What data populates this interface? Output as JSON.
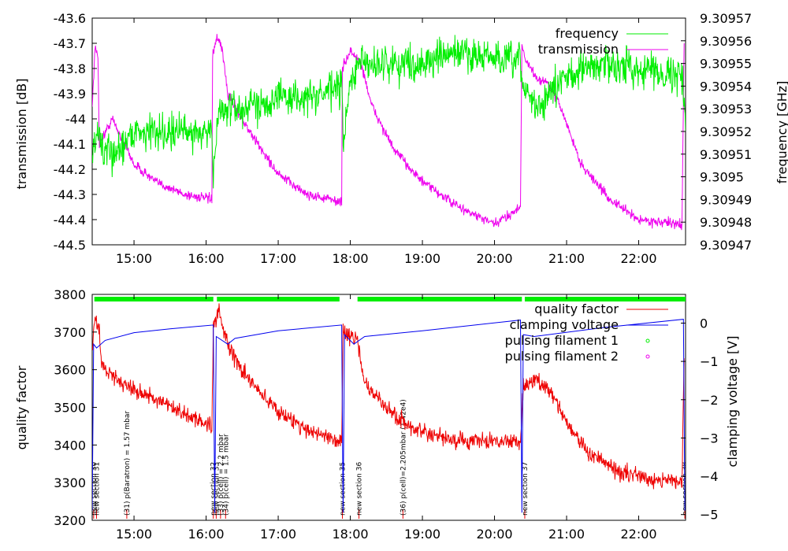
{
  "chart_data": [
    {
      "type": "line",
      "title": "",
      "xlabel": "",
      "ylabel": "transmission [dB]",
      "y2label": "frequency [GHz]",
      "x_ticks": [
        "15:00",
        "16:00",
        "17:00",
        "18:00",
        "19:00",
        "20:00",
        "21:00",
        "22:00"
      ],
      "xlim_hours": [
        14.42,
        22.65
      ],
      "ylim": [
        -44.5,
        -43.6
      ],
      "y_ticks": [
        "-43.6",
        "-43.7",
        "-43.8",
        "-43.9",
        "-44",
        "-44.1",
        "-44.2",
        "-44.3",
        "-44.4",
        "-44.5"
      ],
      "y2lim": [
        9.30947,
        9.30957
      ],
      "y2_ticks": [
        "9.30957",
        "9.30956",
        "9.30955",
        "9.30954",
        "9.30953",
        "9.30952",
        "9.30951",
        "9.3095",
        "9.30949",
        "9.30948",
        "9.30947"
      ],
      "legend": [
        {
          "label": "frequency",
          "color": "#00ee00"
        },
        {
          "label": "transmission",
          "color": "#ee00ee"
        }
      ],
      "series": [
        {
          "name": "transmission",
          "color": "#ee00ee",
          "axis": "y",
          "noise": 0.02,
          "points": [
            [
              14.42,
              -43.95
            ],
            [
              14.46,
              -43.72
            ],
            [
              14.5,
              -43.75
            ],
            [
              14.52,
              -44.1
            ],
            [
              14.7,
              -44.0
            ],
            [
              15.0,
              -44.18
            ],
            [
              15.3,
              -44.25
            ],
            [
              15.7,
              -44.3
            ],
            [
              16.08,
              -44.32
            ],
            [
              16.09,
              -43.75
            ],
            [
              16.15,
              -43.68
            ],
            [
              16.22,
              -43.72
            ],
            [
              16.3,
              -43.9
            ],
            [
              16.6,
              -44.05
            ],
            [
              17.0,
              -44.22
            ],
            [
              17.4,
              -44.3
            ],
            [
              17.88,
              -44.33
            ],
            [
              17.89,
              -43.8
            ],
            [
              18.0,
              -43.73
            ],
            [
              18.15,
              -43.78
            ],
            [
              18.3,
              -43.95
            ],
            [
              18.6,
              -44.12
            ],
            [
              19.0,
              -44.25
            ],
            [
              19.5,
              -44.35
            ],
            [
              20.0,
              -44.42
            ],
            [
              20.36,
              -44.35
            ],
            [
              20.38,
              -43.7
            ],
            [
              20.45,
              -43.78
            ],
            [
              20.6,
              -43.84
            ],
            [
              20.75,
              -43.86
            ],
            [
              20.9,
              -43.94
            ],
            [
              21.2,
              -44.18
            ],
            [
              21.6,
              -44.32
            ],
            [
              22.0,
              -44.4
            ],
            [
              22.6,
              -44.42
            ],
            [
              22.63,
              -43.7
            ]
          ]
        },
        {
          "name": "frequency",
          "color": "#00ee00",
          "axis": "y2",
          "noise": 8e-06,
          "points": [
            [
              14.42,
              9.30951
            ],
            [
              14.5,
              9.30952
            ],
            [
              14.6,
              9.30951
            ],
            [
              14.75,
              9.30951
            ],
            [
              14.85,
              9.309515
            ],
            [
              15.0,
              9.30952
            ],
            [
              15.5,
              9.30952
            ],
            [
              16.08,
              9.30952
            ],
            [
              16.1,
              9.3095
            ],
            [
              16.18,
              9.30953
            ],
            [
              16.5,
              9.30953
            ],
            [
              17.0,
              9.309535
            ],
            [
              17.5,
              9.309535
            ],
            [
              17.88,
              9.30954
            ],
            [
              17.9,
              9.309515
            ],
            [
              18.0,
              9.30954
            ],
            [
              18.1,
              9.30955
            ],
            [
              19.0,
              9.30955
            ],
            [
              19.5,
              9.309555
            ],
            [
              20.36,
              9.30955
            ],
            [
              20.4,
              9.30954
            ],
            [
              20.6,
              9.30953
            ],
            [
              21.0,
              9.309545
            ],
            [
              21.5,
              9.30955
            ],
            [
              22.6,
              9.309545
            ],
            [
              22.65,
              9.30952
            ]
          ]
        }
      ]
    },
    {
      "type": "line",
      "title": "",
      "xlabel": "",
      "ylabel": "quality factor",
      "y2label": "clamping voltage [V]",
      "x_ticks": [
        "15:00",
        "16:00",
        "17:00",
        "18:00",
        "19:00",
        "20:00",
        "21:00",
        "22:00"
      ],
      "xlim_hours": [
        14.42,
        22.65
      ],
      "ylim": [
        3200,
        3800
      ],
      "y_ticks": [
        "3800",
        "3700",
        "3600",
        "3500",
        "3400",
        "3300",
        "3200"
      ],
      "y2lim": [
        -5.15,
        0.75
      ],
      "y2_ticks": [
        "0",
        "−1",
        "−2",
        "−3",
        "−4",
        "−5"
      ],
      "y2_tick_values": [
        0,
        -1,
        -2,
        -3,
        -4,
        -5
      ],
      "legend": [
        {
          "label": "quality factor",
          "color": "#ee0000"
        },
        {
          "label": "clamping voltage",
          "color": "#0000ee"
        },
        {
          "label": "pulsing filament 1",
          "color": "#00ee00"
        },
        {
          "label": "pulsing filament 2",
          "color": "#ee00ee"
        }
      ],
      "series": [
        {
          "name": "quality factor",
          "color": "#ee0000",
          "axis": "y",
          "noise": 22,
          "points": [
            [
              14.42,
              3660
            ],
            [
              14.46,
              3740
            ],
            [
              14.52,
              3700
            ],
            [
              14.55,
              3610
            ],
            [
              14.8,
              3570
            ],
            [
              15.2,
              3530
            ],
            [
              15.6,
              3490
            ],
            [
              16.08,
              3450
            ],
            [
              16.1,
              3720
            ],
            [
              16.18,
              3760
            ],
            [
              16.3,
              3660
            ],
            [
              16.6,
              3570
            ],
            [
              17.0,
              3490
            ],
            [
              17.4,
              3440
            ],
            [
              17.88,
              3410
            ],
            [
              17.9,
              3700
            ],
            [
              18.1,
              3680
            ],
            [
              18.2,
              3560
            ],
            [
              18.6,
              3480
            ],
            [
              19.0,
              3430
            ],
            [
              19.5,
              3410
            ],
            [
              20.36,
              3410
            ],
            [
              20.4,
              3560
            ],
            [
              20.6,
              3570
            ],
            [
              20.8,
              3540
            ],
            [
              21.0,
              3460
            ],
            [
              21.3,
              3380
            ],
            [
              21.7,
              3330
            ],
            [
              22.2,
              3310
            ],
            [
              22.6,
              3305
            ],
            [
              22.63,
              3630
            ]
          ]
        },
        {
          "name": "clamping voltage",
          "color": "#0000ee",
          "axis": "y2",
          "noise": 0,
          "points": [
            [
              14.42,
              -4.9
            ],
            [
              14.44,
              -0.55
            ],
            [
              14.48,
              -0.65
            ],
            [
              14.6,
              -0.45
            ],
            [
              15.0,
              -0.25
            ],
            [
              15.5,
              -0.15
            ],
            [
              16.1,
              -0.05
            ],
            [
              16.12,
              -4.95
            ],
            [
              16.14,
              -0.35
            ],
            [
              16.3,
              -0.55
            ],
            [
              16.4,
              -0.4
            ],
            [
              17.0,
              -0.2
            ],
            [
              17.88,
              -0.05
            ],
            [
              17.9,
              -4.95
            ],
            [
              17.92,
              -0.3
            ],
            [
              18.05,
              -0.55
            ],
            [
              18.2,
              -0.35
            ],
            [
              19.0,
              -0.2
            ],
            [
              20.36,
              0.08
            ],
            [
              20.38,
              -4.95
            ],
            [
              20.4,
              -0.3
            ],
            [
              20.55,
              -0.35
            ],
            [
              21.5,
              -0.12
            ],
            [
              22.62,
              0.1
            ],
            [
              22.64,
              -4.9
            ]
          ]
        }
      ],
      "pulsing_filament_1_segments": [
        [
          14.45,
          16.1
        ],
        [
          16.15,
          17.85
        ],
        [
          18.1,
          20.38
        ],
        [
          20.42,
          22.65
        ]
      ],
      "annotations": [
        {
          "x": 14.44,
          "label": "new section 30"
        },
        {
          "x": 14.48,
          "label": "new section 31"
        },
        {
          "x": 14.9,
          "label": "(31) p(Baratron) = 1.57 mbar"
        },
        {
          "x": 16.1,
          "label": "new section 32"
        },
        {
          "x": 16.14,
          "label": "new section 33"
        },
        {
          "x": 16.2,
          "label": "(33) p(cell) = 2.2 mbar"
        },
        {
          "x": 16.27,
          "label": "(34) p(cell) = 1.5 mbar"
        },
        {
          "x": 17.89,
          "label": "new section 35"
        },
        {
          "x": 18.12,
          "label": "new section 36"
        },
        {
          "x": 18.73,
          "label": "(36) p(cell)=2.205mbar (1.42e4)"
        },
        {
          "x": 20.42,
          "label": "new section 37"
        },
        {
          "x": 22.64,
          "label": "new section 38"
        }
      ]
    }
  ]
}
